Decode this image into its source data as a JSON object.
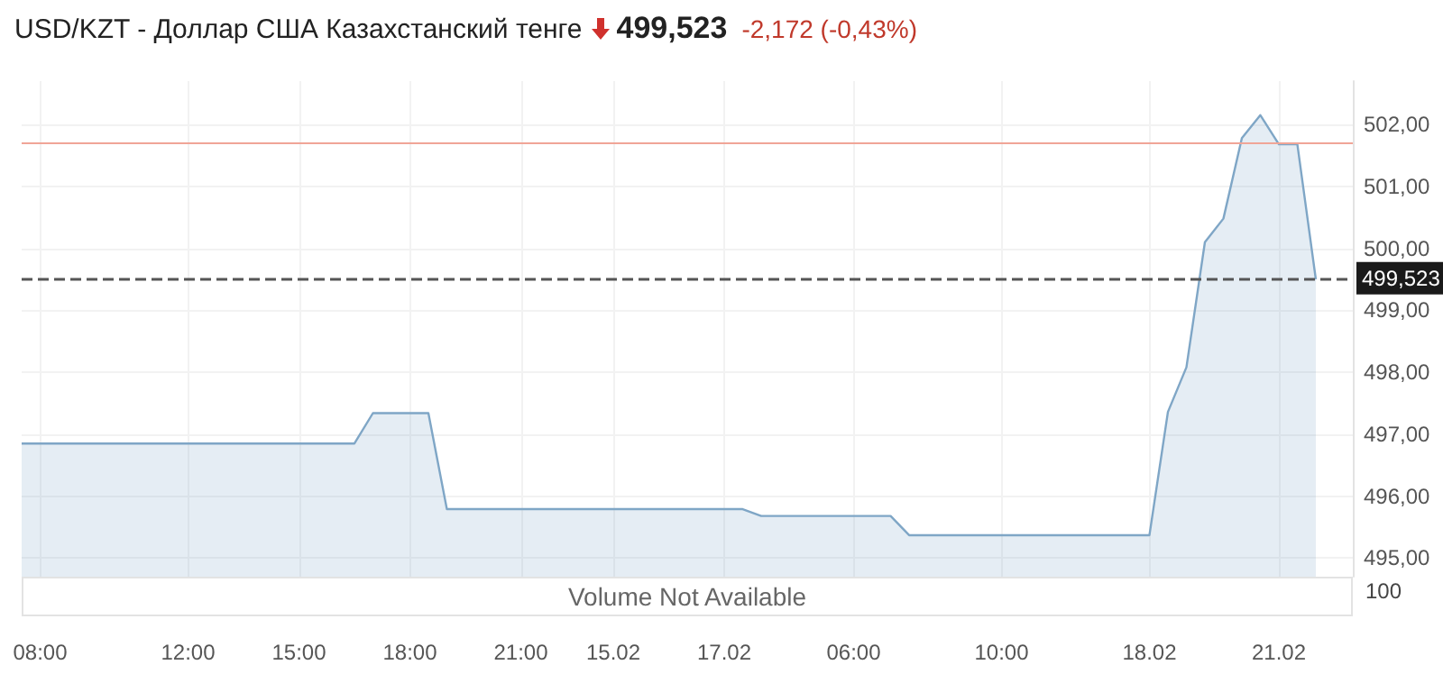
{
  "chart_data": [
    {
      "type": "area",
      "title": "USD/KZT - Доллар США Казахстанский тенге",
      "annotations": [
        "499,523",
        "-2,172 (-0,43%)"
      ],
      "categories": [
        null,
        "08:00",
        null,
        null,
        null,
        null,
        null,
        null,
        null,
        "12:00",
        null,
        null,
        null,
        null,
        null,
        "15:00",
        null,
        null,
        null,
        null,
        null,
        "18:00",
        null,
        null,
        null,
        null,
        null,
        "21:00",
        null,
        null,
        null,
        null,
        "15.02",
        null,
        null,
        null,
        null,
        null,
        "17.02",
        null,
        null,
        null,
        null,
        null,
        null,
        "06:00",
        null,
        null,
        null,
        null,
        null,
        null,
        null,
        "10:00",
        null,
        null,
        null,
        null,
        null,
        null,
        null,
        "18.02",
        null,
        null,
        null,
        null,
        null,
        null,
        "21.02",
        null,
        null,
        null,
        null
      ],
      "series": [
        {
          "color": "#7fa6c6",
          "values": [
            496.85,
            496.85,
            496.85,
            496.85,
            496.85,
            496.85,
            496.85,
            496.85,
            496.85,
            496.85,
            496.85,
            496.85,
            496.85,
            496.85,
            496.85,
            496.85,
            496.85,
            496.85,
            496.85,
            497.34,
            497.34,
            497.34,
            497.34,
            495.79,
            495.79,
            495.79,
            495.79,
            495.79,
            495.79,
            495.79,
            495.79,
            495.79,
            495.79,
            495.79,
            495.79,
            495.79,
            495.79,
            495.79,
            495.79,
            495.79,
            495.68,
            495.68,
            495.68,
            495.68,
            495.68,
            495.68,
            495.68,
            495.68,
            495.37,
            495.37,
            495.37,
            495.37,
            495.37,
            495.37,
            495.37,
            495.37,
            495.37,
            495.37,
            495.37,
            495.37,
            495.37,
            495.37,
            497.36,
            498.08,
            500.1,
            500.48,
            501.78,
            502.15,
            501.68,
            501.68,
            499.5,
            null,
            null
          ]
        }
      ],
      "ylim": [
        494.7,
        502.7
      ],
      "yticks": [
        {
          "value": 495,
          "label": "495,00"
        },
        {
          "value": 496,
          "label": "496,00"
        },
        {
          "value": 497,
          "label": "497,00"
        },
        {
          "value": 498,
          "label": "498,00"
        },
        {
          "value": 499,
          "label": "499,00"
        },
        {
          "value": 500,
          "label": "500,00"
        },
        {
          "value": 501,
          "label": "501,00"
        },
        {
          "value": 502,
          "label": "502,00"
        }
      ],
      "ref_lines": [
        {
          "axis": "y",
          "value": 501.69,
          "label": null,
          "color": "#f0a597",
          "line_style": "solid"
        },
        {
          "axis": "y",
          "value": 499.523,
          "label": "499,523",
          "color": "#555555",
          "line_style": "dashed"
        }
      ],
      "grid": true,
      "marker": "none",
      "line_style": "solid"
    },
    {
      "type": "other",
      "annotations": [
        "Volume Not Available",
        "100"
      ]
    }
  ]
}
